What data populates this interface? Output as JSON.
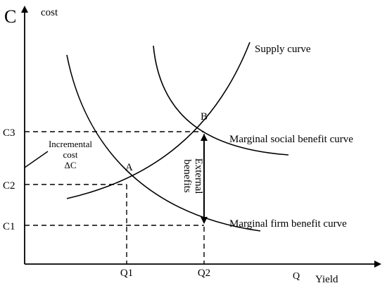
{
  "axes": {
    "y_symbol": "C",
    "y_label": "cost",
    "x_symbol": "Q",
    "x_label": "Yield"
  },
  "y_ticks": [
    "C3",
    "C2",
    "C1"
  ],
  "x_ticks": [
    "Q1",
    "Q2"
  ],
  "points": {
    "a": "A",
    "b": "B"
  },
  "curves": {
    "supply": "Supply curve",
    "social": "Marginal social benefit curve",
    "firm": "Marginal firm benefit curve"
  },
  "annotations": {
    "incremental": [
      "Incremental",
      "cost",
      "ΔC"
    ],
    "external": [
      "External",
      "benefits"
    ]
  }
}
